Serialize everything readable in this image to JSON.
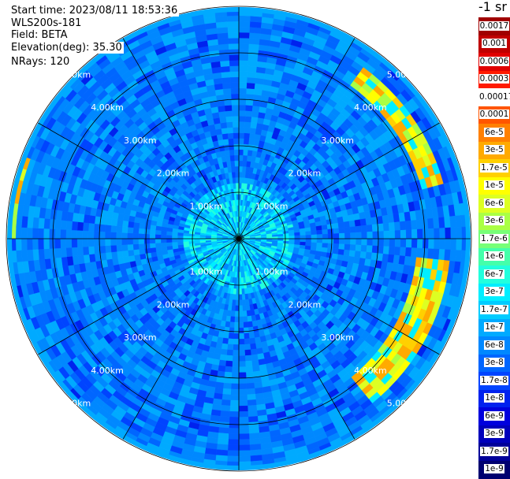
{
  "header": {
    "start_time": "Start time: 2023/08/11 18:53:36",
    "device": "WLS200s-181",
    "field": "Field: BETA",
    "elevation": "Elevation(deg): 35.30",
    "nrays": "NRays: 120"
  },
  "colorbar": {
    "title": "-1 sr",
    "levels": [
      {
        "label": "0.0017",
        "color": "#a00000"
      },
      {
        "label": "0.001",
        "color": "#c00000"
      },
      {
        "label": "0.0006",
        "color": "#e00000"
      },
      {
        "label": "0.0003",
        "color": "#ff1a00"
      },
      {
        "label": "0.00017",
        "color": "#ffffff"
      },
      {
        "label": "0.0001",
        "color": "#ff5500"
      },
      {
        "label": "6e-5",
        "color": "#ff8000"
      },
      {
        "label": "3e-5",
        "color": "#ffaa00"
      },
      {
        "label": "1.7e-5",
        "color": "#ffd000"
      },
      {
        "label": "1e-5",
        "color": "#ffff00"
      },
      {
        "label": "6e-6",
        "color": "#ddff22"
      },
      {
        "label": "3e-6",
        "color": "#aaff44"
      },
      {
        "label": "1.7e-6",
        "color": "#77ff77"
      },
      {
        "label": "1e-6",
        "color": "#44ffaa"
      },
      {
        "label": "6e-7",
        "color": "#22ffdd"
      },
      {
        "label": "3e-7",
        "color": "#00eeff"
      },
      {
        "label": "1.7e-7",
        "color": "#00ccff"
      },
      {
        "label": "1e-7",
        "color": "#00aaff"
      },
      {
        "label": "6e-8",
        "color": "#0088ff"
      },
      {
        "label": "3e-8",
        "color": "#0066ff"
      },
      {
        "label": "1.7e-8",
        "color": "#0044ff"
      },
      {
        "label": "1e-8",
        "color": "#0022ee"
      },
      {
        "label": "6e-9",
        "color": "#0000dd"
      },
      {
        "label": "3e-9",
        "color": "#0000bb"
      },
      {
        "label": "1.7e-9",
        "color": "#000099"
      },
      {
        "label": "1e-9",
        "color": "#000070"
      }
    ]
  },
  "chart_data": {
    "type": "heatmap",
    "projection": "polar (PPI)",
    "field": "BETA",
    "range_rings_km": [
      1,
      2,
      3,
      4,
      5
    ],
    "range_ring_labels": [
      "1.00km",
      "2.00km",
      "3.00km",
      "4.00km",
      "5.00km"
    ],
    "max_range_km": 5.0,
    "spokes_deg": [
      0,
      30,
      60,
      90,
      120,
      150,
      180,
      210,
      240,
      270,
      300,
      330
    ],
    "nrays": 120,
    "background_level": "6e-8",
    "high_value_regions": [
      {
        "azimuth_deg_range": [
          35,
          75
        ],
        "range_km": [
          4.1,
          4.6
        ],
        "peak_level": "1e-5"
      },
      {
        "azimuth_deg_range": [
          95,
          140
        ],
        "range_km": [
          3.8,
          4.5
        ],
        "peak_level": "6e-6"
      },
      {
        "azimuth_deg_range": [
          270,
          290
        ],
        "range_km": [
          4.8,
          5.0
        ],
        "peak_level": "1e-5"
      }
    ]
  }
}
